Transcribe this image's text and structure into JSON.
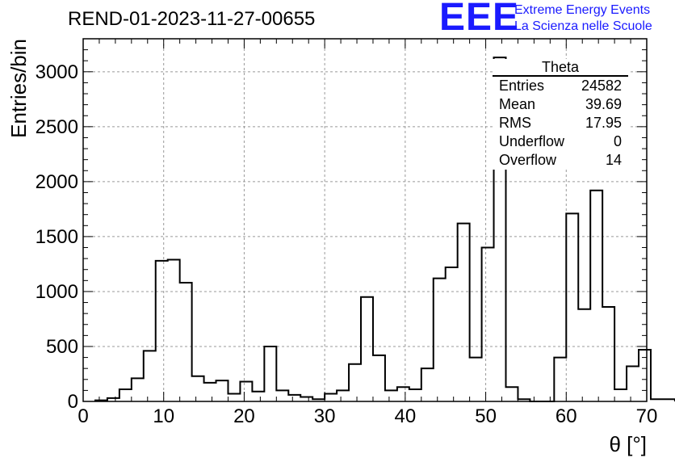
{
  "header": {
    "run_title": "REND-01-2023-11-27-00655",
    "logo_mark": "EEE",
    "logo_line1": "Extreme Energy Events",
    "logo_line2": "La Scienza nelle Scuole"
  },
  "stats": {
    "title": "Theta",
    "rows": [
      {
        "label": "Entries",
        "value": "24582"
      },
      {
        "label": "Mean",
        "value": "39.69"
      },
      {
        "label": "RMS",
        "value": "17.95"
      },
      {
        "label": "Underflow",
        "value": "0"
      },
      {
        "label": "Overflow",
        "value": "14"
      }
    ]
  },
  "colors": {
    "logo": "#1a1aff",
    "histogram": "#000000",
    "grid": "#999999"
  },
  "chart_data": {
    "type": "bar",
    "style": "step-histogram",
    "title": "REND-01-2023-11-27-00655",
    "xlabel": "θ [°]",
    "ylabel": "Entries/bin",
    "xlim": [
      0,
      70
    ],
    "ylim": [
      0,
      3300
    ],
    "xticks": [
      0,
      10,
      20,
      30,
      40,
      50,
      60,
      70
    ],
    "yticks": [
      0,
      500,
      1000,
      1500,
      2000,
      2500,
      3000
    ],
    "grid": true,
    "legend": "top-right",
    "bin_width": 1.5,
    "bin_edges_start": 1.5,
    "values": [
      10,
      30,
      110,
      210,
      460,
      1280,
      1290,
      1080,
      230,
      170,
      190,
      70,
      180,
      90,
      500,
      100,
      60,
      40,
      20,
      70,
      100,
      340,
      950,
      420,
      100,
      130,
      110,
      300,
      1120,
      1220,
      1620,
      400,
      1400,
      3130,
      130,
      20,
      0,
      0,
      400,
      1710,
      840,
      1920,
      860,
      110,
      320,
      470,
      20,
      20
    ]
  }
}
